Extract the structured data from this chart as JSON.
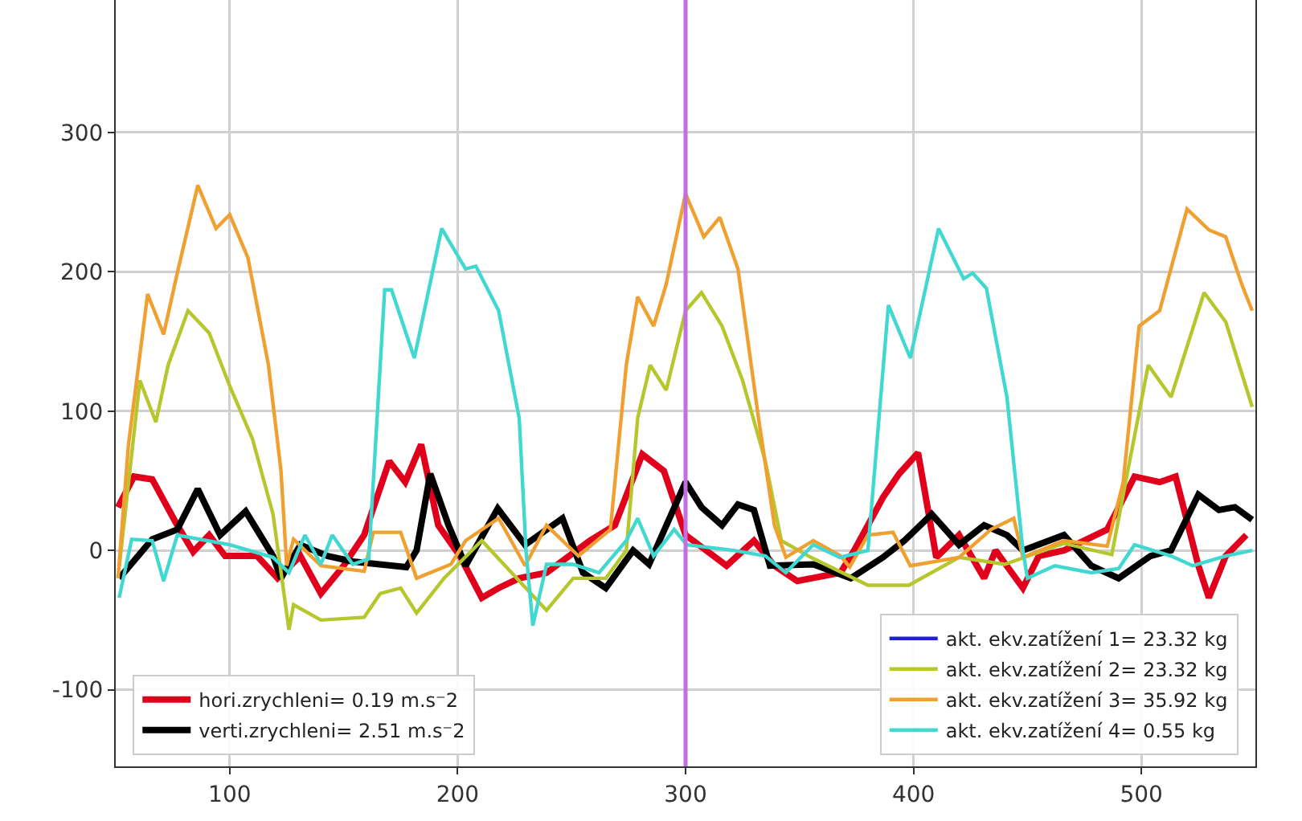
{
  "chart_data": {
    "type": "line",
    "xlim": [
      50,
      550
    ],
    "ylim": [
      -155,
      395
    ],
    "xticks": [
      100,
      200,
      300,
      400,
      500
    ],
    "yticks": [
      -100,
      0,
      100,
      200,
      300
    ],
    "grid": true,
    "legend": "bottom",
    "line_style": "solid",
    "marker": "none",
    "ref_lines": [
      {
        "axis": "x",
        "value": 300,
        "color": "#c070e0"
      }
    ],
    "series": [
      {
        "name": "hori.zrychleni= 0.19 m.s⁻2",
        "color": "#e0001b",
        "x": [
          51,
          58,
          66,
          77,
          84,
          91,
          98,
          112,
          121,
          131,
          140,
          150,
          159,
          170,
          177,
          184,
          191.5,
          201,
          210.6,
          218,
          227,
          239,
          258,
          269,
          281,
          290.5,
          300,
          309,
          318,
          330,
          339,
          349,
          368,
          374,
          386.6,
          393.7,
          402,
          410,
          420,
          431,
          436,
          448,
          455,
          466,
          485,
          497,
          508,
          515,
          525,
          529.6,
          537,
          546
        ],
        "values": [
          31,
          53,
          51,
          18,
          -1,
          11,
          -4,
          -4,
          -20,
          -4,
          -31,
          -11,
          11,
          64,
          49,
          76,
          18,
          -4,
          -34,
          -27,
          -20,
          -16,
          7,
          18,
          69,
          57,
          11,
          0,
          -11,
          7,
          -11,
          -22,
          -16,
          0,
          38,
          55,
          70,
          -5,
          11,
          -20,
          0,
          -27,
          -4,
          0,
          15,
          53,
          49,
          53,
          -11,
          -34,
          -4,
          11
        ]
      },
      {
        "name": "verti.zrychleni= 2.51 m.s⁻2",
        "color": "#000000",
        "x": [
          51.5,
          66,
          77,
          86,
          95.8,
          107,
          119,
          122.5,
          131,
          143,
          154,
          177.5,
          182,
          188,
          196,
          203.5,
          217.6,
          229.6,
          246,
          255,
          265,
          277,
          284,
          300,
          307,
          316,
          323,
          330,
          337,
          356,
          372.5,
          386.6,
          396,
          408,
          420,
          431,
          441,
          448,
          466,
          478,
          490,
          504,
          513,
          525,
          534,
          541,
          548.6
        ],
        "values": [
          -20,
          8,
          15,
          44,
          11,
          28,
          -4,
          -20,
          4,
          -4,
          -8,
          -12,
          0,
          55,
          18,
          -11,
          30,
          4,
          23,
          -16,
          -27,
          0,
          -10,
          49,
          31,
          18,
          33,
          29,
          -11,
          -10,
          -20,
          -5,
          7,
          26,
          4,
          18,
          11,
          0,
          11,
          -11,
          -20,
          -4,
          0,
          40,
          29,
          31,
          22
        ]
      },
      {
        "name": "akt. ekv.zatížení 1= 23.32 kg",
        "color": "#2020d0",
        "values": [
          null
        ]
      },
      {
        "name": "akt. ekv.zatížení 2= 23.32 kg",
        "color": "#b5c72c",
        "x": [
          51.5,
          60.6,
          67.6,
          73,
          81.7,
          91,
          100,
          110,
          119,
          126,
          128,
          140,
          159,
          166,
          175,
          182,
          194,
          210.6,
          239,
          250.7,
          265,
          274,
          279,
          284.5,
          291.5,
          300,
          307,
          316,
          325,
          335,
          342,
          355,
          380,
          398,
          420,
          440,
          466,
          487,
          494,
          503,
          513,
          527.5,
          537,
          548.6
        ],
        "values": [
          -12,
          122,
          92,
          133,
          172,
          156,
          118,
          80,
          26,
          -57,
          -39,
          -50,
          -48,
          -31,
          -27,
          -45,
          -20,
          7,
          -43,
          -20,
          -20,
          0,
          95,
          133,
          115,
          172,
          185,
          161,
          122,
          64,
          7,
          -5,
          -25,
          -25,
          -5,
          -10,
          5,
          -3,
          57,
          133,
          110,
          185,
          164,
          103
        ]
      },
      {
        "name": "akt. ekv.zatížení 3= 35.92 kg",
        "color": "#f0a030",
        "x": [
          51,
          55.6,
          64,
          71,
          77,
          86,
          94,
          100,
          108,
          117,
          122.5,
          125,
          128,
          140,
          159,
          163,
          175,
          182,
          197,
          203.5,
          218,
          229.6,
          239,
          253,
          267,
          274,
          279,
          286,
          291.5,
          300,
          308,
          315,
          323,
          332,
          339,
          344,
          356,
          368,
          372,
          380,
          391,
          398.6,
          420,
          434,
          444,
          448,
          466,
          485,
          492,
          499,
          508,
          520,
          529.6,
          537,
          544,
          548.6
        ],
        "values": [
          -20,
          76,
          184,
          155,
          199,
          262,
          231,
          241,
          210,
          133,
          57,
          -11,
          8,
          -11,
          -15,
          13,
          13,
          -20,
          -10,
          7,
          23,
          -11,
          18,
          -4,
          15,
          133,
          182,
          161,
          191,
          256,
          225,
          239,
          202,
          95,
          18,
          -5,
          7,
          -4,
          -12,
          11,
          13,
          -11,
          -5,
          15,
          23,
          -5,
          7,
          3,
          49,
          161,
          172,
          245,
          230,
          225,
          191,
          172
        ]
      },
      {
        "name": "akt. ekv.zatížení 4= 0.55 kg",
        "color": "#40d8d0",
        "x": [
          51.5,
          57,
          66,
          71,
          77,
          100,
          119,
          126,
          133,
          140,
          145,
          154,
          161,
          168,
          171,
          181,
          193,
          203.5,
          208,
          218,
          227,
          230,
          233,
          239,
          250.7,
          262,
          274,
          279,
          286,
          295,
          300.5,
          321,
          335,
          344,
          356,
          367.6,
          380,
          389,
          398.6,
          411,
          422,
          426,
          432,
          441,
          448,
          450,
          462,
          478,
          490,
          497,
          513,
          522.5,
          537,
          548.6
        ],
        "values": [
          -34,
          8,
          7,
          -22,
          11,
          4,
          -5,
          -16,
          11,
          -10,
          11,
          -10,
          -6,
          187,
          187,
          138,
          231,
          202,
          204,
          172,
          95,
          0,
          -54,
          -10,
          -10,
          -16,
          7,
          23,
          -4,
          15,
          4,
          0,
          -4,
          -16,
          4,
          -5,
          0,
          176,
          138,
          231,
          195,
          199,
          188,
          110,
          0,
          -20,
          -11,
          -16,
          -13,
          4,
          -4,
          -11,
          -4,
          0
        ]
      }
    ]
  }
}
